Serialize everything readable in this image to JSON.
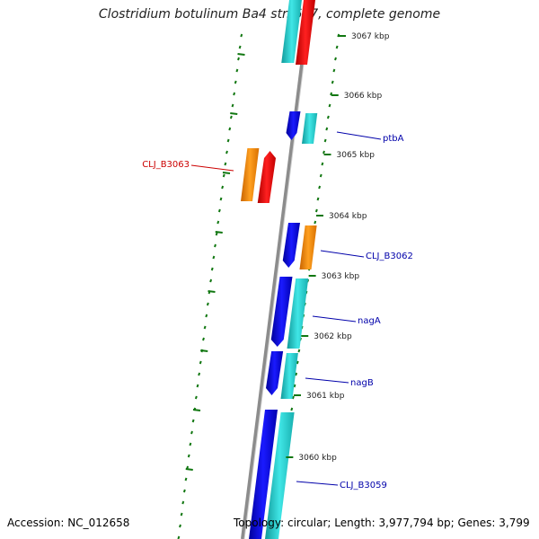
{
  "title": "Clostridium botulinum Ba4 str. 657, complete genome",
  "accession_label": "Accession: NC_012658",
  "stats_label": "Topology: circular; Length: 3,977,794 bp; Genes: 3,799",
  "colors": {
    "forward_cds": "#ff0000",
    "reverse_cds": "#0000ee",
    "orange_feature": "#ff8c00",
    "cyan_feature": "#22d0d0",
    "backbone": "#8c8c8c",
    "tick": "#117711",
    "gene_label_reverse": "#0000aa",
    "gene_label_forward": "#cc0000"
  },
  "ruler_ticks": [
    {
      "label": "3067 kbp"
    },
    {
      "label": "3066 kbp"
    },
    {
      "label": "3065 kbp"
    },
    {
      "label": "3064 kbp"
    },
    {
      "label": "3063 kbp"
    },
    {
      "label": "3062 kbp"
    },
    {
      "label": "3061 kbp"
    },
    {
      "label": "3060 kbp"
    }
  ],
  "gene_labels": [
    {
      "name": "ptbA",
      "strand": "reverse"
    },
    {
      "name": "CLJ_B3063",
      "strand": "forward"
    },
    {
      "name": "CLJ_B3062",
      "strand": "reverse"
    },
    {
      "name": "nagA",
      "strand": "reverse"
    },
    {
      "name": "nagB",
      "strand": "reverse"
    },
    {
      "name": "CLJ_B3059",
      "strand": "reverse"
    }
  ]
}
